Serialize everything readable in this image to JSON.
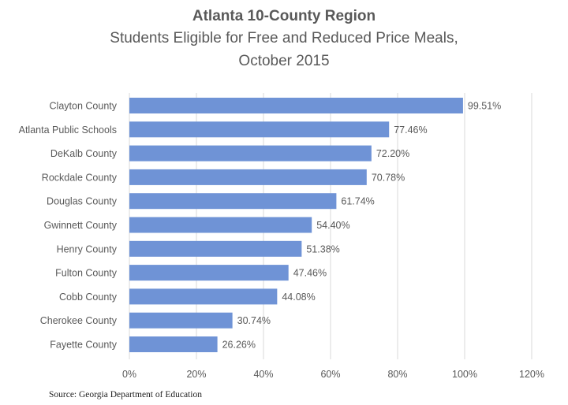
{
  "chart_data": {
    "type": "bar",
    "orientation": "horizontal",
    "title": "Atlanta 10-County Region",
    "subtitle_lines": [
      "Students Eligible for Free and Reduced Price Meals,",
      "October 2015"
    ],
    "categories": [
      "Clayton County",
      "Atlanta Public Schools",
      "DeKalb County",
      "Rockdale County",
      "Douglas County",
      "Gwinnett County",
      "Henry County",
      "Fulton County",
      "Cobb County",
      "Cherokee County",
      "Fayette County"
    ],
    "values": [
      99.51,
      77.46,
      72.2,
      70.78,
      61.74,
      54.4,
      51.38,
      47.46,
      44.08,
      30.74,
      26.26
    ],
    "data_labels": [
      "99.51%",
      "77.46%",
      "72.20%",
      "70.78%",
      "61.74%",
      "54.40%",
      "51.38%",
      "47.46%",
      "44.08%",
      "30.74%",
      "26.26%"
    ],
    "x_ticks": [
      0,
      20,
      40,
      60,
      80,
      100,
      120
    ],
    "x_tick_labels": [
      "0%",
      "20%",
      "40%",
      "60%",
      "80%",
      "100%",
      "120%"
    ],
    "xlim": [
      0,
      120
    ],
    "xlabel": "",
    "ylabel": "",
    "grid": true,
    "legend": "none",
    "bar_color": "#6f93d6",
    "source": "Source: Georgia Department of Education"
  }
}
